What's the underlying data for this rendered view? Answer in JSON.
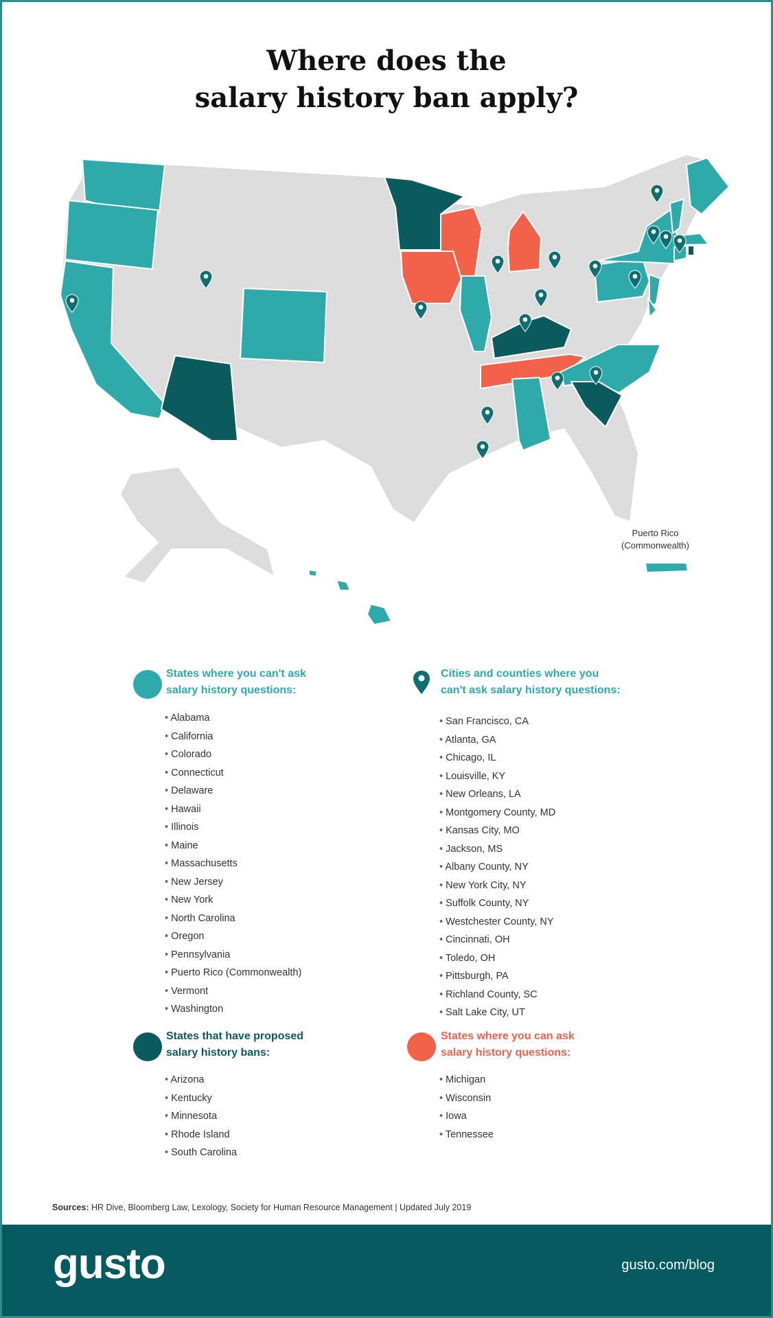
{
  "title_line1": "Where does the",
  "title_line2": "salary history ban apply?",
  "colors": {
    "cant_ask": "#2eaaab",
    "proposed": "#0b5a5e",
    "can_ask": "#f2624b",
    "neutral": "#dcdcdc",
    "pin": "#0f6e70",
    "footer": "#045a5f"
  },
  "map": {
    "puerto_rico_label_line1": "Puerto Rico",
    "puerto_rico_label_line2": "(Commonwealth)",
    "pin_icon": "map-pin-icon"
  },
  "legend": {
    "cant_ask": {
      "heading_line1": "States where you can't ask",
      "heading_line2": "salary history questions:",
      "icon": "teal-circle",
      "items": [
        "Alabama",
        "California",
        "Colorado",
        "Connecticut",
        "Delaware",
        "Hawaii",
        "Illinois",
        "Maine",
        "Massachusetts",
        "New Jersey",
        "New York",
        "North Carolina",
        "Oregon",
        "Pennsylvania",
        "Puerto Rico (Commonwealth)",
        "Vermont",
        "Washington"
      ]
    },
    "cities": {
      "heading_line1": "Cities and counties where you",
      "heading_line2": "can't ask salary history questions:",
      "icon": "map-pin-icon",
      "items": [
        "San Francisco, CA",
        "Atlanta, GA",
        "Chicago, IL",
        "Louisville, KY",
        "New Orleans, LA",
        "Montgomery County, MD",
        "Kansas City, MO",
        "Jackson, MS",
        "Albany County, NY",
        "New York City, NY",
        "Suffolk County, NY",
        "Westchester County, NY",
        "Cincinnati, OH",
        "Toledo, OH",
        "Pittsburgh, PA",
        "Richland County, SC",
        "Salt Lake City, UT"
      ]
    },
    "proposed": {
      "heading_line1": "States that have proposed",
      "heading_line2": "salary history bans:",
      "icon": "dark-teal-circle",
      "items": [
        "Arizona",
        "Kentucky",
        "Minnesota",
        "Rhode Island",
        "South Carolina"
      ]
    },
    "can_ask": {
      "heading_line1": "States where you can ask",
      "heading_line2": "salary history questions:",
      "icon": "orange-circle",
      "items": [
        "Michigan",
        "Wisconsin",
        "Iowa",
        "Tennessee"
      ]
    }
  },
  "sources_label": "Sources:",
  "sources_text": " HR Dive, Bloomberg Law, Lexology, Society for Human Resource Management | Updated July 2019",
  "footer": {
    "logo": "gusto",
    "url": "gusto.com/blog"
  }
}
